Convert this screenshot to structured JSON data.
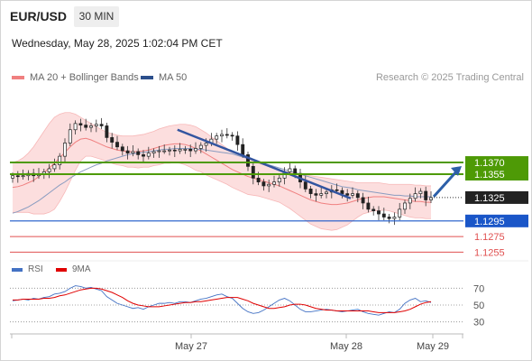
{
  "header": {
    "symbol": "EUR/USD",
    "timeframe": "30 MIN",
    "datetime": "Wednesday, May 28, 2025 1:02:04 PM CET"
  },
  "legend": {
    "ma20": {
      "label": "MA 20 + Bollinger Bands",
      "color": "#f08080"
    },
    "ma50": {
      "label": "MA 50",
      "color": "#2c4f8c"
    },
    "credit": "Research © 2025 Trading Central"
  },
  "rsi_legend": {
    "rsi": {
      "label": "RSI",
      "color": "#4472c4"
    },
    "ma9": {
      "label": "9MA",
      "color": "#e00000"
    }
  },
  "chart_data": [
    {
      "type": "candlestick",
      "ylim": [
        1.1245,
        1.1465
      ],
      "x_labels": [
        "May 27",
        "May 28",
        "May 29"
      ],
      "levels": [
        {
          "value": "1.1370",
          "kind": "resistance",
          "color": "#4e9a06"
        },
        {
          "value": "1.1355",
          "kind": "resistance",
          "color": "#4e9a06"
        },
        {
          "value": "1.1325",
          "kind": "last",
          "color": "#222222"
        },
        {
          "value": "1.1295",
          "kind": "pivot",
          "color": "#1a56c8"
        },
        {
          "value": "1.1275",
          "kind": "support",
          "color": "#e05050"
        },
        {
          "value": "1.1255",
          "kind": "support",
          "color": "#e05050"
        }
      ],
      "trendline": {
        "from": [
          0.394,
          1.1412
        ],
        "to": [
          0.808,
          1.1324
        ]
      },
      "forecast_arrow": {
        "from": 1.1325,
        "to": 1.137
      },
      "close": [
        1.1353,
        1.1352,
        1.1353,
        1.1356,
        1.1353,
        1.1355,
        1.1358,
        1.1362,
        1.1367,
        1.1378,
        1.1395,
        1.1412,
        1.142,
        1.1418,
        1.1415,
        1.1417,
        1.1419,
        1.1417,
        1.1402,
        1.1396,
        1.139,
        1.1385,
        1.1382,
        1.1384,
        1.138,
        1.1378,
        1.1382,
        1.1384,
        1.1385,
        1.1385,
        1.1386,
        1.1385,
        1.1387,
        1.1387,
        1.1385,
        1.1388,
        1.1392,
        1.1395,
        1.14,
        1.1404,
        1.1406,
        1.1405,
        1.1404,
        1.1393,
        1.138,
        1.1365,
        1.135,
        1.1345,
        1.134,
        1.1342,
        1.1345,
        1.135,
        1.1358,
        1.1362,
        1.1356,
        1.1345,
        1.1336,
        1.133,
        1.1328,
        1.133,
        1.1332,
        1.1335,
        1.1334,
        1.133,
        1.1328,
        1.133,
        1.1325,
        1.1318,
        1.131,
        1.1308,
        1.1304,
        1.13,
        1.1298,
        1.13,
        1.131,
        1.1318,
        1.1324,
        1.133,
        1.1333,
        1.1322,
        1.1325
      ],
      "ma20": [
        1.1338,
        1.1339,
        1.1341,
        1.1344,
        1.1347,
        1.1352,
        1.1357,
        1.1363,
        1.1369,
        1.1376,
        1.1383,
        1.139,
        1.1396,
        1.14,
        1.1401,
        1.1399,
        1.1396,
        1.1393,
        1.139,
        1.1388,
        1.1386,
        1.1385,
        1.1384,
        1.1384,
        1.1384,
        1.1385,
        1.1386,
        1.1388,
        1.139,
        1.1392,
        1.1393,
        1.1394,
        1.1394,
        1.1393,
        1.1391,
        1.1388,
        1.1385,
        1.1381,
        1.1377,
        1.1373,
        1.1369,
        1.1365,
        1.1361,
        1.1358,
        1.1355,
        1.1352,
        1.135,
        1.1348,
        1.1346,
        1.1344,
        1.1342,
        1.134,
        1.1337,
        1.1334,
        1.1331,
        1.1328,
        1.1325,
        1.1322,
        1.132,
        1.1318,
        1.1317,
        1.1316,
        1.1316,
        1.1317,
        1.1318,
        1.132,
        1.1322,
        1.1324,
        1.1325,
        1.1326,
        1.1326,
        1.1326,
        1.1325,
        1.1324,
        1.1323,
        1.1322,
        1.1321,
        1.132,
        1.132,
        1.1319,
        1.1319
      ],
      "bb_upper": [
        1.137,
        1.1372,
        1.1376,
        1.1382,
        1.139,
        1.14,
        1.141,
        1.142,
        1.1428,
        1.1432,
        1.1434,
        1.1434,
        1.1432,
        1.1428,
        1.1424,
        1.142,
        1.1416,
        1.1412,
        1.1409,
        1.1407,
        1.1405,
        1.1404,
        1.1404,
        1.1404,
        1.1405,
        1.1406,
        1.1408,
        1.141,
        1.1413,
        1.1415,
        1.1417,
        1.1418,
        1.1419,
        1.1419,
        1.1418,
        1.1416,
        1.1412,
        1.1408,
        1.1403,
        1.1398,
        1.1393,
        1.1388,
        1.1384,
        1.1381,
        1.1378,
        1.1375,
        1.1372,
        1.1369,
        1.1367,
        1.1365,
        1.1363,
        1.1361,
        1.1359,
        1.1357,
        1.1356,
        1.1355,
        1.1354,
        1.1353,
        1.1352,
        1.1351,
        1.135,
        1.1349,
        1.1348,
        1.1347,
        1.1346,
        1.1345,
        1.1344,
        1.1344,
        1.1344,
        1.1344,
        1.1344,
        1.1343,
        1.1342,
        1.1342,
        1.1342,
        1.1342,
        1.1342,
        1.1341,
        1.1341,
        1.134,
        1.134
      ],
      "bb_lower": [
        1.1306,
        1.1306,
        1.1306,
        1.1306,
        1.1304,
        1.1304,
        1.1304,
        1.1306,
        1.131,
        1.132,
        1.1332,
        1.1346,
        1.136,
        1.1372,
        1.1378,
        1.1378,
        1.1376,
        1.1374,
        1.1371,
        1.1369,
        1.1367,
        1.1366,
        1.1364,
        1.1364,
        1.1363,
        1.1364,
        1.1364,
        1.1366,
        1.1367,
        1.1369,
        1.1369,
        1.137,
        1.1369,
        1.1367,
        1.1364,
        1.136,
        1.1358,
        1.1354,
        1.1351,
        1.1348,
        1.1345,
        1.1342,
        1.1338,
        1.1335,
        1.1332,
        1.1329,
        1.1328,
        1.1327,
        1.1325,
        1.1323,
        1.1321,
        1.1319,
        1.1315,
        1.1311,
        1.1306,
        1.1301,
        1.1296,
        1.1291,
        1.1288,
        1.1285,
        1.1284,
        1.1283,
        1.1284,
        1.1287,
        1.129,
        1.1295,
        1.13,
        1.1304,
        1.1306,
        1.1308,
        1.1308,
        1.1309,
        1.1308,
        1.1306,
        1.1304,
        1.1302,
        1.13,
        1.1299,
        1.1299,
        1.1298,
        1.1298
      ],
      "ma50": [
        1.1305,
        1.1307,
        1.131,
        1.1313,
        1.1317,
        1.1321,
        1.1326,
        1.1331,
        1.1336,
        1.1341,
        1.1345,
        1.135,
        1.1354,
        1.1358,
        1.1361,
        1.1364,
        1.1367,
        1.1369,
        1.1372,
        1.1374,
        1.1376,
        1.1378,
        1.138,
        1.1381,
        1.1382,
        1.1383,
        1.1384,
        1.1385,
        1.1386,
        1.1387,
        1.1387,
        1.1388,
        1.1388,
        1.1388,
        1.1388,
        1.1387,
        1.1387,
        1.1386,
        1.1385,
        1.1384,
        1.1383,
        1.1382,
        1.1381,
        1.1379,
        1.1377,
        1.1375,
        1.1373,
        1.1371,
        1.1369,
        1.1367,
        1.1365,
        1.1363,
        1.1361,
        1.1359,
        1.1357,
        1.1355,
        1.1353,
        1.1351,
        1.1349,
        1.1347,
        1.1345,
        1.1343,
        1.1341,
        1.1339,
        1.1338,
        1.1337,
        1.1335,
        1.1334,
        1.1333,
        1.1332,
        1.1331,
        1.133,
        1.1329,
        1.1328,
        1.1328,
        1.1327,
        1.1327,
        1.1326,
        1.1326,
        1.1326,
        1.1326
      ]
    },
    {
      "type": "line",
      "ylim": [
        20,
        80
      ],
      "y_ticks": [
        70,
        50,
        30
      ],
      "rsi": [
        55,
        56,
        57,
        56,
        58,
        57,
        59,
        60,
        63,
        64,
        66,
        70,
        73,
        72,
        70,
        71,
        69,
        67,
        60,
        56,
        52,
        50,
        48,
        46,
        47,
        45,
        48,
        50,
        52,
        52,
        53,
        52,
        54,
        54,
        53,
        55,
        57,
        58,
        60,
        62,
        63,
        60,
        58,
        52,
        46,
        42,
        40,
        41,
        44,
        48,
        52,
        56,
        58,
        55,
        50,
        45,
        42,
        42,
        43,
        44,
        45,
        44,
        43,
        42,
        43,
        44,
        45,
        42,
        40,
        39,
        38,
        40,
        42,
        41,
        45,
        52,
        56,
        58,
        54,
        55,
        53
      ],
      "ma9": [
        56,
        56,
        57,
        57,
        57,
        57,
        58,
        58,
        59,
        61,
        62,
        64,
        66,
        68,
        69,
        70,
        70,
        69,
        67,
        65,
        62,
        59,
        55,
        52,
        50,
        49,
        48,
        48,
        48,
        49,
        50,
        51,
        52,
        53,
        53,
        54,
        54,
        55,
        56,
        57,
        58,
        59,
        59,
        59,
        57,
        55,
        52,
        50,
        48,
        46,
        46,
        47,
        48,
        50,
        51,
        51,
        50,
        48,
        46,
        45,
        44,
        44,
        43,
        43,
        43,
        43,
        43,
        43,
        43,
        42,
        41,
        41,
        41,
        41,
        42,
        43,
        45,
        48,
        51,
        53,
        54
      ]
    }
  ]
}
